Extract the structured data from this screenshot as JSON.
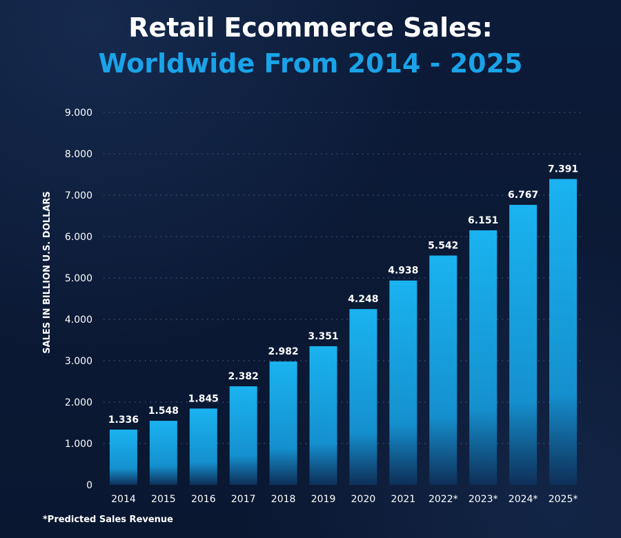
{
  "header": {
    "title": "Retail Ecommerce Sales:",
    "subtitle": "Worldwide From 2014 - 2025"
  },
  "footnote": "*Predicted Sales Revenue",
  "colors": {
    "background": "#0b1a35",
    "title": "#ffffff",
    "subtitle": "#1aa3e8",
    "bar_top": "#1ab0ee",
    "bar_bottom": "#0e3560",
    "grid": "#3b4f74"
  },
  "chart_data": {
    "type": "bar",
    "ylabel": "SALES IN BILLION U.S. DOLLARS",
    "xlabel": "",
    "ylim": [
      0,
      9000
    ],
    "yticks": [
      0,
      1000,
      2000,
      3000,
      4000,
      5000,
      6000,
      7000,
      8000,
      9000
    ],
    "ytick_labels": [
      "0",
      "1.000",
      "2.000",
      "3.000",
      "4.000",
      "5.000",
      "6.000",
      "7.000",
      "8.000",
      "9.000"
    ],
    "grid": true,
    "categories": [
      "2014",
      "2015",
      "2016",
      "2017",
      "2018",
      "2019",
      "2020",
      "2021",
      "2022*",
      "2023*",
      "2024*",
      "2025*"
    ],
    "values": [
      1336,
      1548,
      1845,
      2382,
      2982,
      3351,
      4248,
      4938,
      5542,
      6151,
      6767,
      7391
    ],
    "value_labels": [
      "1.336",
      "1.548",
      "1.845",
      "2.382",
      "2.982",
      "3.351",
      "4.248",
      "4.938",
      "5.542",
      "6.151",
      "6.767",
      "7.391"
    ]
  }
}
